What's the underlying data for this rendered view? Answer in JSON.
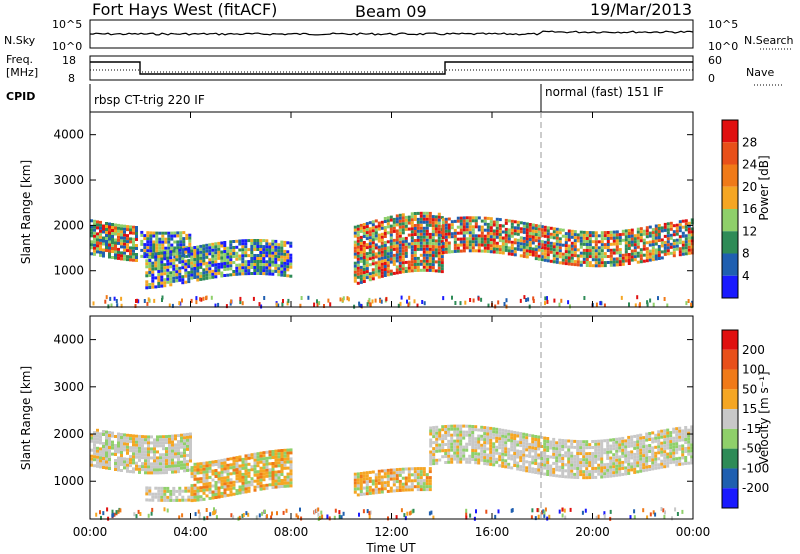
{
  "header": {
    "station": "Fort Hays West (fitACF)",
    "beam": "Beam 09",
    "date": "19/Mar/2013"
  },
  "top_panels": {
    "nsky_label": "N.Sky",
    "nsearch_label": "N.Search",
    "nsky_ticks": [
      "10^5",
      "10^0"
    ],
    "nsearch_ticks": [
      "10^5",
      "10^0"
    ],
    "freq_label_1": "Freq.",
    "freq_label_2": "[MHz]",
    "freq_ticks": [
      "18",
      "8"
    ],
    "nave_label": "Nave",
    "nave_ticks": [
      "60",
      "0"
    ],
    "cpid_label": "CPID",
    "cpid_1": "rbsp CT-trig 220 IF",
    "cpid_2": "normal (fast) 151 IF"
  },
  "chart_data": [
    {
      "type": "heatmap",
      "name": "power",
      "ylabel": "Slant Range [km]",
      "yticks": [
        "1000",
        "2000",
        "3000",
        "4000"
      ],
      "ylim": [
        200,
        4500
      ],
      "xlim_hours": [
        0,
        24
      ],
      "colorbar_label": "Power [dB]",
      "colorbar_ticks": [
        "4",
        "8",
        "12",
        "16",
        "20",
        "24",
        "28"
      ],
      "colorbar_colors": [
        "#1a1aff",
        "#1f5fb0",
        "#2e8b57",
        "#8fd06a",
        "#f5a623",
        "#f07a18",
        "#e8501a",
        "#e01010"
      ],
      "features": [
        {
          "t0": 0.0,
          "t1": 1.8,
          "r0": 1200,
          "r1": 2300,
          "level": "high"
        },
        {
          "t0": 2.0,
          "t1": 4.0,
          "r0": 1300,
          "r1": 2100,
          "level": "mid"
        },
        {
          "t0": 2.2,
          "t1": 8.0,
          "r0": 600,
          "r1": 1700,
          "level": "mid"
        },
        {
          "t0": 10.5,
          "t1": 14.0,
          "r0": 500,
          "r1": 2300,
          "level": "high"
        },
        {
          "t0": 14.0,
          "t1": 24.0,
          "r0": 1100,
          "r1": 2200,
          "level": "high"
        }
      ]
    },
    {
      "type": "heatmap",
      "name": "velocity",
      "xlabel": "Time UT",
      "ylabel": "Slant Range [km]",
      "yticks": [
        "1000",
        "2000",
        "3000",
        "4000"
      ],
      "xticks": [
        "00:00",
        "04:00",
        "08:00",
        "12:00",
        "16:00",
        "20:00",
        "00:00"
      ],
      "ylim": [
        200,
        4500
      ],
      "xlim_hours": [
        0,
        24
      ],
      "colorbar_label": "Velocity [m s⁻¹]",
      "colorbar_ticks": [
        "200",
        "100",
        "50",
        "15",
        "-15",
        "-50",
        "-100",
        "-200"
      ],
      "colorbar_colors": [
        "#1a1aff",
        "#1f5fb0",
        "#2e8b57",
        "#8fd06a",
        "#c8c8c8",
        "#f5a623",
        "#f07a18",
        "#e8501a",
        "#e01010"
      ],
      "features": [
        {
          "t0": 0.0,
          "t1": 4.0,
          "r0": 1200,
          "r1": 2300,
          "level": "ground"
        },
        {
          "t0": 2.2,
          "t1": 4.0,
          "r0": 600,
          "r1": 1000,
          "level": "ground"
        },
        {
          "t0": 4.0,
          "t1": 8.0,
          "r0": 600,
          "r1": 1700,
          "level": "neg"
        },
        {
          "t0": 10.5,
          "t1": 13.5,
          "r0": 600,
          "r1": 1300,
          "level": "neg"
        },
        {
          "t0": 13.5,
          "t1": 24.0,
          "r0": 1100,
          "r1": 2200,
          "level": "ground"
        }
      ]
    }
  ]
}
